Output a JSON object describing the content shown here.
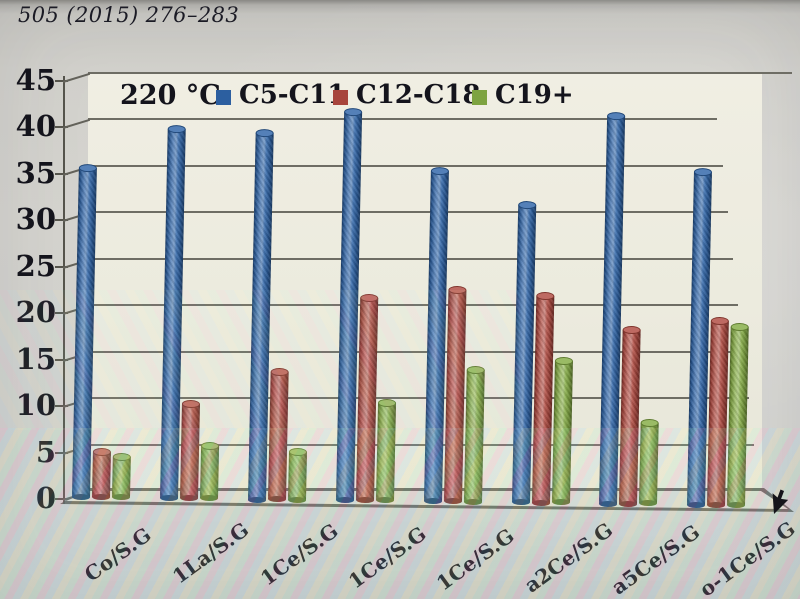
{
  "citation": "505 (2015) 276–283",
  "pointer": {
    "icon": "cursor-arrow-icon"
  },
  "chart_data": {
    "type": "bar",
    "style": "3d-cylinder",
    "title": "220 °C",
    "categories": [
      "Co/S.G",
      "1La/S.G",
      "1Ce/S.G",
      "1Ce/S.G",
      "1Ce/S.G",
      "a2Ce/S.G",
      "a5Ce/S.G",
      "o-1Ce/S.G"
    ],
    "series": [
      {
        "name": "C5-C11",
        "color": "#2e64a8",
        "values": [
          35.2,
          39.5,
          39.2,
          41.5,
          35.3,
          31.8,
          41.5,
          35.6
        ]
      },
      {
        "name": "C12-C18",
        "color": "#b0493f",
        "values": [
          4.8,
          10.1,
          13.6,
          21.6,
          22.6,
          22.1,
          18.6,
          19.7
        ]
      },
      {
        "name": "C19+",
        "color": "#84ac43",
        "values": [
          4.3,
          5.6,
          5.1,
          10.4,
          14.1,
          15.1,
          8.6,
          19.0
        ]
      }
    ],
    "ylim": [
      0,
      45
    ],
    "yticks": [
      0,
      5,
      10,
      15,
      20,
      25,
      30,
      35,
      40,
      45
    ],
    "xlabel": "",
    "ylabel": "",
    "legend_position": "top-inside",
    "grid": true,
    "colors": {
      "gridline": "#6e6d64",
      "wall": "#ecebde",
      "axis_text": "#14141c"
    }
  }
}
